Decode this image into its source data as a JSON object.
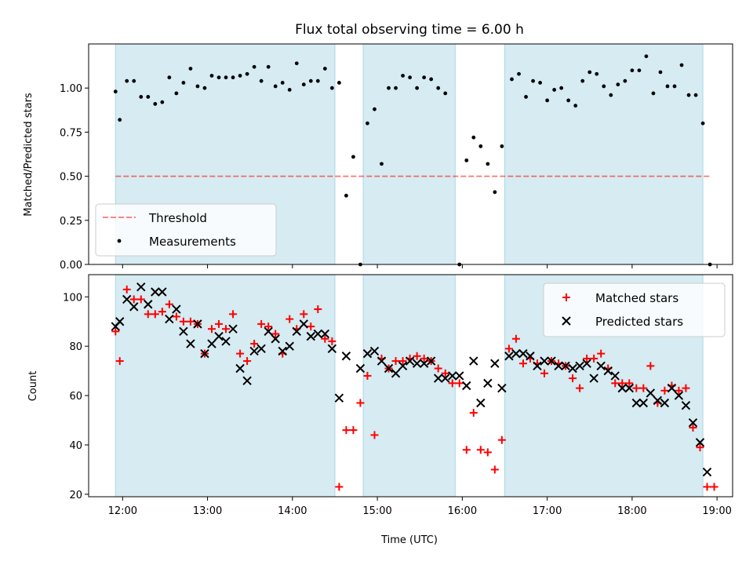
{
  "colors": {
    "band": "#add8e6",
    "threshold": "#ff0000",
    "measurement": "#000000",
    "matched": "#ff0000",
    "predicted": "#000000"
  },
  "chart_data": [
    {
      "type": "scatter",
      "title": "Flux total observing time = 6.00 h",
      "xlabel": "",
      "ylabel": "Matched/Predicted stars",
      "xlim": [
        "11:36",
        "19:11"
      ],
      "ylim": [
        0,
        1.25
      ],
      "yticks": [
        "0.00",
        "0.25",
        "0.50",
        "0.75",
        "1.00"
      ],
      "xticks": [
        "12:00",
        "13:00",
        "14:00",
        "15:00",
        "16:00",
        "17:00",
        "18:00",
        "19:00"
      ],
      "observing_windows": [
        [
          "11:55",
          "14:30"
        ],
        [
          "14:50",
          "15:55"
        ],
        [
          "16:30",
          "18:50"
        ]
      ],
      "threshold": {
        "name": "Threshold",
        "y": 0.5,
        "x_range": [
          "11:55",
          "18:55"
        ]
      },
      "legend_position": "lower-left",
      "series": [
        {
          "name": "Measurements",
          "points": [
            [
              "11:55",
              0.98
            ],
            [
              "11:58",
              0.82
            ],
            [
              "12:03",
              1.04
            ],
            [
              "12:08",
              1.04
            ],
            [
              "12:13",
              0.95
            ],
            [
              "12:18",
              0.95
            ],
            [
              "12:23",
              0.91
            ],
            [
              "12:28",
              0.92
            ],
            [
              "12:33",
              1.06
            ],
            [
              "12:38",
              0.97
            ],
            [
              "12:43",
              1.03
            ],
            [
              "12:48",
              1.11
            ],
            [
              "12:53",
              1.01
            ],
            [
              "12:58",
              1.0
            ],
            [
              "13:03",
              1.07
            ],
            [
              "13:08",
              1.06
            ],
            [
              "13:13",
              1.06
            ],
            [
              "13:18",
              1.06
            ],
            [
              "13:23",
              1.07
            ],
            [
              "13:28",
              1.08
            ],
            [
              "13:33",
              1.12
            ],
            [
              "13:38",
              1.04
            ],
            [
              "13:43",
              1.12
            ],
            [
              "13:48",
              1.01
            ],
            [
              "13:53",
              1.03
            ],
            [
              "13:58",
              0.99
            ],
            [
              "14:03",
              1.14
            ],
            [
              "14:08",
              1.02
            ],
            [
              "14:13",
              1.04
            ],
            [
              "14:18",
              1.04
            ],
            [
              "14:23",
              1.11
            ],
            [
              "14:28",
              1.0
            ],
            [
              "14:33",
              1.03
            ],
            [
              "14:38",
              0.39
            ],
            [
              "14:43",
              0.61
            ],
            [
              "14:48",
              0.0
            ],
            [
              "14:53",
              0.8
            ],
            [
              "14:58",
              0.88
            ],
            [
              "15:03",
              0.57
            ],
            [
              "15:08",
              1.0
            ],
            [
              "15:13",
              1.0
            ],
            [
              "15:18",
              1.07
            ],
            [
              "15:23",
              1.06
            ],
            [
              "15:28",
              1.0
            ],
            [
              "15:33",
              1.06
            ],
            [
              "15:38",
              1.05
            ],
            [
              "15:43",
              1.0
            ],
            [
              "15:48",
              0.97
            ],
            [
              "15:58",
              0.0
            ],
            [
              "16:03",
              0.59
            ],
            [
              "16:08",
              0.72
            ],
            [
              "16:13",
              0.67
            ],
            [
              "16:18",
              0.57
            ],
            [
              "16:23",
              0.41
            ],
            [
              "16:28",
              0.67
            ],
            [
              "16:35",
              1.05
            ],
            [
              "16:40",
              1.08
            ],
            [
              "16:45",
              0.95
            ],
            [
              "16:50",
              1.04
            ],
            [
              "16:55",
              1.03
            ],
            [
              "17:00",
              0.93
            ],
            [
              "17:05",
              0.99
            ],
            [
              "17:10",
              1.0
            ],
            [
              "17:15",
              0.93
            ],
            [
              "17:20",
              0.9
            ],
            [
              "17:25",
              1.04
            ],
            [
              "17:30",
              1.09
            ],
            [
              "17:35",
              1.08
            ],
            [
              "17:40",
              1.01
            ],
            [
              "17:45",
              0.96
            ],
            [
              "17:50",
              1.02
            ],
            [
              "17:55",
              1.04
            ],
            [
              "18:00",
              1.1
            ],
            [
              "18:05",
              1.1
            ],
            [
              "18:10",
              1.18
            ],
            [
              "18:15",
              0.97
            ],
            [
              "18:20",
              1.09
            ],
            [
              "18:25",
              1.01
            ],
            [
              "18:30",
              1.01
            ],
            [
              "18:35",
              1.13
            ],
            [
              "18:40",
              0.96
            ],
            [
              "18:45",
              0.96
            ],
            [
              "18:50",
              0.8
            ],
            [
              "18:55",
              0.0
            ]
          ]
        }
      ]
    },
    {
      "type": "scatter",
      "title": "",
      "xlabel": "Time (UTC)",
      "ylabel": "Count",
      "xlim": [
        "11:36",
        "19:11"
      ],
      "ylim": [
        19,
        109
      ],
      "yticks": [
        "20",
        "40",
        "60",
        "80",
        "100"
      ],
      "xticks": [
        "12:00",
        "13:00",
        "14:00",
        "15:00",
        "16:00",
        "17:00",
        "18:00",
        "19:00"
      ],
      "observing_windows": [
        [
          "11:55",
          "14:30"
        ],
        [
          "14:50",
          "15:55"
        ],
        [
          "16:30",
          "18:50"
        ]
      ],
      "legend_position": "upper-right",
      "series": [
        {
          "name": "Matched stars",
          "points": [
            [
              "11:55",
              86
            ],
            [
              "11:58",
              74
            ],
            [
              "12:03",
              103
            ],
            [
              "12:08",
              99
            ],
            [
              "12:13",
              99
            ],
            [
              "12:18",
              93
            ],
            [
              "12:23",
              93
            ],
            [
              "12:28",
              94
            ],
            [
              "12:33",
              97
            ],
            [
              "12:38",
              92
            ],
            [
              "12:43",
              90
            ],
            [
              "12:48",
              90
            ],
            [
              "12:53",
              89
            ],
            [
              "12:58",
              77
            ],
            [
              "13:03",
              87
            ],
            [
              "13:08",
              89
            ],
            [
              "13:13",
              87
            ],
            [
              "13:18",
              93
            ],
            [
              "13:23",
              77
            ],
            [
              "13:28",
              74
            ],
            [
              "13:33",
              81
            ],
            [
              "13:38",
              89
            ],
            [
              "13:43",
              88
            ],
            [
              "13:48",
              85
            ],
            [
              "13:53",
              77
            ],
            [
              "13:58",
              91
            ],
            [
              "14:03",
              87
            ],
            [
              "14:08",
              93
            ],
            [
              "14:13",
              88
            ],
            [
              "14:18",
              95
            ],
            [
              "14:23",
              83
            ],
            [
              "14:28",
              82
            ],
            [
              "14:33",
              23
            ],
            [
              "14:38",
              46
            ],
            [
              "14:43",
              46
            ],
            [
              "14:48",
              57
            ],
            [
              "14:53",
              68
            ],
            [
              "14:58",
              44
            ],
            [
              "15:03",
              75
            ],
            [
              "15:08",
              71
            ],
            [
              "15:13",
              74
            ],
            [
              "15:18",
              74
            ],
            [
              "15:23",
              75
            ],
            [
              "15:28",
              76
            ],
            [
              "15:33",
              75
            ],
            [
              "15:38",
              74
            ],
            [
              "15:43",
              71
            ],
            [
              "15:48",
              69
            ],
            [
              "15:53",
              65
            ],
            [
              "15:58",
              65
            ],
            [
              "16:03",
              38
            ],
            [
              "16:08",
              53
            ],
            [
              "16:13",
              38
            ],
            [
              "16:18",
              37
            ],
            [
              "16:23",
              30
            ],
            [
              "16:28",
              42
            ],
            [
              "16:33",
              79
            ],
            [
              "16:38",
              83
            ],
            [
              "16:43",
              73
            ],
            [
              "16:48",
              75
            ],
            [
              "16:53",
              73
            ],
            [
              "16:58",
              69
            ],
            [
              "17:03",
              74
            ],
            [
              "17:08",
              73
            ],
            [
              "17:13",
              72
            ],
            [
              "17:18",
              67
            ],
            [
              "17:23",
              63
            ],
            [
              "17:28",
              75
            ],
            [
              "17:33",
              75
            ],
            [
              "17:38",
              77
            ],
            [
              "17:43",
              71
            ],
            [
              "17:48",
              65
            ],
            [
              "17:53",
              65
            ],
            [
              "17:58",
              65
            ],
            [
              "18:03",
              63
            ],
            [
              "18:08",
              63
            ],
            [
              "18:13",
              72
            ],
            [
              "18:18",
              57
            ],
            [
              "18:23",
              62
            ],
            [
              "18:28",
              64
            ],
            [
              "18:33",
              62
            ],
            [
              "18:38",
              63
            ],
            [
              "18:43",
              47
            ],
            [
              "18:48",
              39
            ],
            [
              "18:53",
              23
            ],
            [
              "18:58",
              23
            ]
          ]
        },
        {
          "name": "Predicted stars",
          "points": [
            [
              "11:55",
              88
            ],
            [
              "11:58",
              90
            ],
            [
              "12:03",
              99
            ],
            [
              "12:08",
              96
            ],
            [
              "12:13",
              104
            ],
            [
              "12:18",
              97
            ],
            [
              "12:23",
              102
            ],
            [
              "12:28",
              102
            ],
            [
              "12:33",
              91
            ],
            [
              "12:38",
              95
            ],
            [
              "12:43",
              86
            ],
            [
              "12:48",
              81
            ],
            [
              "12:53",
              89
            ],
            [
              "12:58",
              77
            ],
            [
              "13:03",
              81
            ],
            [
              "13:08",
              84
            ],
            [
              "13:13",
              82
            ],
            [
              "13:18",
              87
            ],
            [
              "13:23",
              71
            ],
            [
              "13:28",
              66
            ],
            [
              "13:33",
              78
            ],
            [
              "13:38",
              79
            ],
            [
              "13:43",
              86
            ],
            [
              "13:48",
              83
            ],
            [
              "13:53",
              78
            ],
            [
              "13:58",
              80
            ],
            [
              "14:03",
              86
            ],
            [
              "14:08",
              89
            ],
            [
              "14:13",
              84
            ],
            [
              "14:18",
              85
            ],
            [
              "14:23",
              85
            ],
            [
              "14:28",
              79
            ],
            [
              "14:33",
              59
            ],
            [
              "14:38",
              76
            ],
            [
              "14:48",
              71
            ],
            [
              "14:53",
              77
            ],
            [
              "14:58",
              78
            ],
            [
              "15:03",
              74
            ],
            [
              "15:08",
              71
            ],
            [
              "15:13",
              69
            ],
            [
              "15:18",
              72
            ],
            [
              "15:23",
              74
            ],
            [
              "15:28",
              73
            ],
            [
              "15:33",
              73
            ],
            [
              "15:38",
              74
            ],
            [
              "15:43",
              67
            ],
            [
              "15:48",
              67
            ],
            [
              "15:53",
              68
            ],
            [
              "15:58",
              68
            ],
            [
              "16:03",
              64
            ],
            [
              "16:08",
              74
            ],
            [
              "16:13",
              57
            ],
            [
              "16:18",
              65
            ],
            [
              "16:23",
              73
            ],
            [
              "16:28",
              63
            ],
            [
              "16:33",
              76
            ],
            [
              "16:38",
              77
            ],
            [
              "16:43",
              77
            ],
            [
              "16:48",
              76
            ],
            [
              "16:53",
              72
            ],
            [
              "16:58",
              74
            ],
            [
              "17:03",
              74
            ],
            [
              "17:08",
              72
            ],
            [
              "17:13",
              72
            ],
            [
              "17:18",
              71
            ],
            [
              "17:23",
              72
            ],
            [
              "17:28",
              73
            ],
            [
              "17:33",
              67
            ],
            [
              "17:38",
              72
            ],
            [
              "17:43",
              70
            ],
            [
              "17:48",
              68
            ],
            [
              "17:53",
              63
            ],
            [
              "17:58",
              63
            ],
            [
              "18:03",
              57
            ],
            [
              "18:08",
              57
            ],
            [
              "18:13",
              61
            ],
            [
              "18:18",
              58
            ],
            [
              "18:23",
              57
            ],
            [
              "18:28",
              63
            ],
            [
              "18:33",
              60
            ],
            [
              "18:38",
              56
            ],
            [
              "18:43",
              49
            ],
            [
              "18:48",
              41
            ],
            [
              "18:53",
              29
            ]
          ]
        }
      ]
    }
  ]
}
